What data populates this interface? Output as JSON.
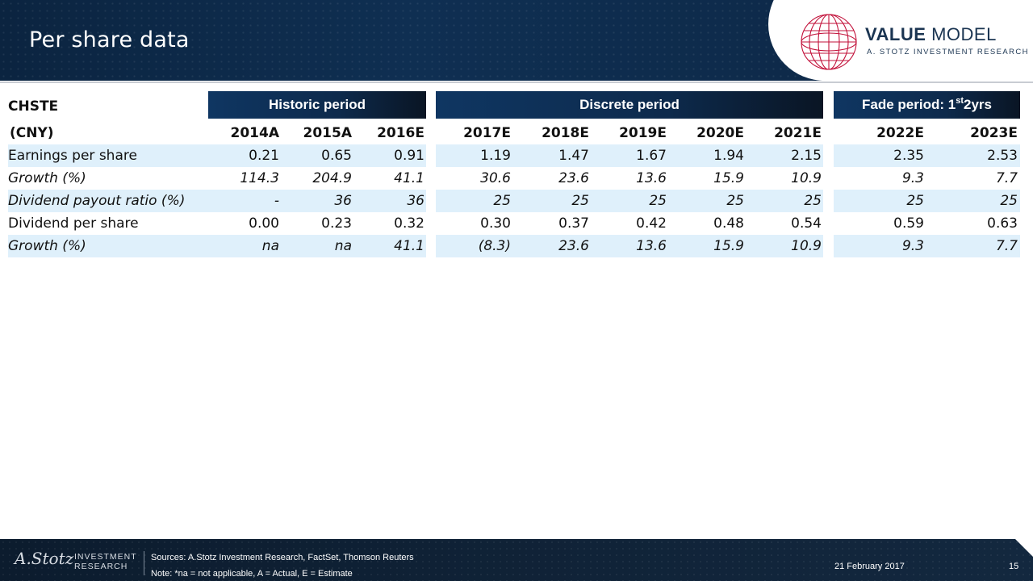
{
  "header": {
    "title": "Per share data",
    "brand_bold": "VALUE",
    "brand_light": "MODEL",
    "brand_sub": "A. STOTZ INVESTMENT RESEARCH",
    "globe_color": "#c2113a"
  },
  "table": {
    "ticker": "CHSTE",
    "currency": "(CNY)",
    "bands": {
      "historic": "Historic period",
      "discrete": "Discrete period",
      "fade_main": "Fade period: 1",
      "fade_sup": "st",
      "fade_tail": " 2yrs"
    },
    "years": [
      "2014A",
      "2015A",
      "2016E",
      "2017E",
      "2018E",
      "2019E",
      "2020E",
      "2021E",
      "2022E",
      "2023E"
    ],
    "rows": [
      {
        "label": "Earnings per share",
        "italic": false,
        "shaded": true,
        "values": [
          "0.21",
          "0.65",
          "0.91",
          "1.19",
          "1.47",
          "1.67",
          "1.94",
          "2.15",
          "2.35",
          "2.53"
        ]
      },
      {
        "label": "Growth (%)",
        "italic": true,
        "shaded": false,
        "values": [
          "114.3",
          "204.9",
          "41.1",
          "30.6",
          "23.6",
          "13.6",
          "15.9",
          "10.9",
          "9.3",
          "7.7"
        ]
      },
      {
        "label": "Dividend payout ratio (%)",
        "italic": true,
        "shaded": true,
        "values": [
          "-",
          "36",
          "36",
          "25",
          "25",
          "25",
          "25",
          "25",
          "25",
          "25"
        ]
      },
      {
        "label": "Dividend per share",
        "italic": false,
        "shaded": false,
        "values": [
          "0.00",
          "0.23",
          "0.32",
          "0.30",
          "0.37",
          "0.42",
          "0.48",
          "0.54",
          "0.59",
          "0.63"
        ]
      },
      {
        "label": "Growth (%)",
        "italic": true,
        "shaded": true,
        "values": [
          "na",
          "na",
          "41.1",
          "(8.3)",
          "23.6",
          "13.6",
          "15.9",
          "10.9",
          "9.3",
          "7.7"
        ]
      }
    ],
    "shade_color": "#dff0fb"
  },
  "footer": {
    "logo_signature": "A.Stotz",
    "logo_line1": "INVESTMENT",
    "logo_line2": "RESEARCH",
    "sources": "Sources: A.Stotz Investment Research, FactSet, Thomson Reuters",
    "note": "Note: *na = not applicable, A = Actual, E = Estimate",
    "date": "21 February 2017",
    "page": "15"
  }
}
